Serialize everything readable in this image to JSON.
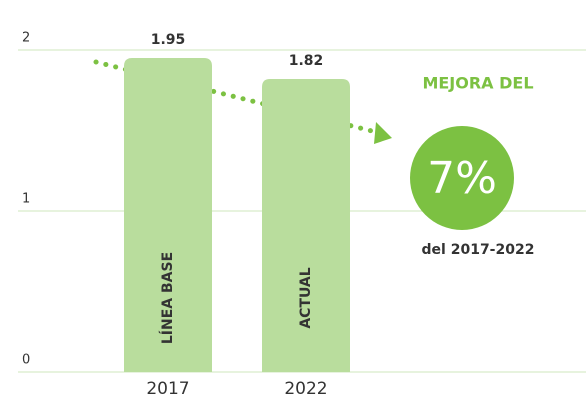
{
  "chart_data": {
    "type": "bar",
    "categories": [
      "2017",
      "2022"
    ],
    "values": [
      1.95,
      1.82
    ],
    "bar_labels": [
      "LÍNEA BASE",
      "ACTUAL"
    ],
    "color": "#b9dd9d",
    "ylim": [
      0,
      2
    ],
    "yticks": [
      0,
      1,
      2
    ],
    "grid": true,
    "annotation": {
      "headline": "MEJORA DEL",
      "highlight": "7%",
      "subtitle": "del 2017-2022",
      "color": "#7cc142"
    }
  }
}
